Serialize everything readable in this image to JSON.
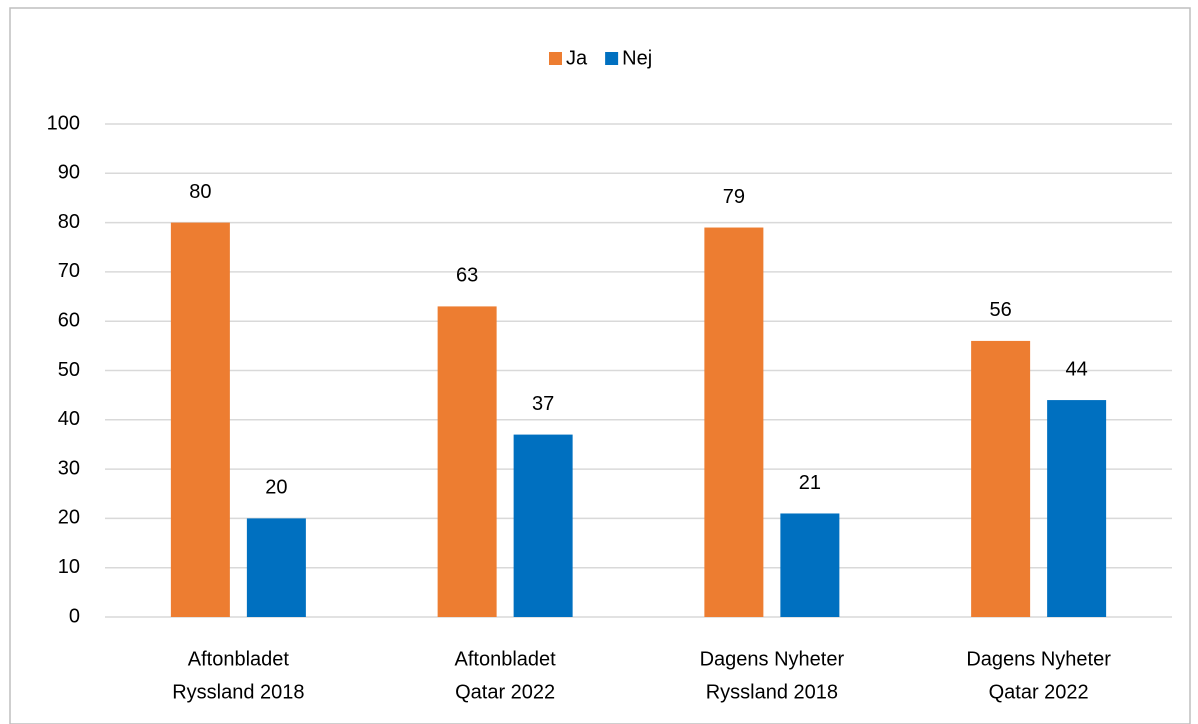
{
  "chart_data": {
    "type": "bar",
    "categories": [
      [
        "Aftonbladet",
        "Ryssland 2018"
      ],
      [
        "Aftonbladet",
        "Qatar 2022"
      ],
      [
        "Dagens Nyheter",
        "Ryssland 2018"
      ],
      [
        "Dagens Nyheter",
        "Qatar 2022"
      ]
    ],
    "series": [
      {
        "name": "Ja",
        "color": "#ed7d31",
        "values": [
          80,
          63,
          79,
          56
        ]
      },
      {
        "name": "Nej",
        "color": "#0070c0",
        "values": [
          20,
          37,
          21,
          44
        ]
      }
    ],
    "ylim": [
      0,
      100
    ],
    "yticks": [
      0,
      10,
      20,
      30,
      40,
      50,
      60,
      70,
      80,
      90,
      100
    ],
    "grid": true,
    "legend": "top"
  }
}
